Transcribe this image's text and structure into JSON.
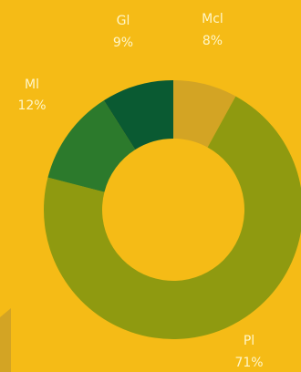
{
  "chart_data": {
    "type": "pie",
    "style": "donut",
    "title": "",
    "background_color": "#f5bb16",
    "segments": [
      {
        "label": "Mcl",
        "value": 8,
        "value_label": "8%",
        "color": "#d3a424"
      },
      {
        "label": "Pl",
        "value": 71,
        "value_label": "71%",
        "color": "#8f9a10"
      },
      {
        "label": "Ml",
        "value": 12,
        "value_label": "12%",
        "color": "#2c7a2c"
      },
      {
        "label": "Gl",
        "value": 9,
        "value_label": "9%",
        "color": "#0a5a32"
      }
    ],
    "legend": false,
    "grid": false
  },
  "decoration": {
    "corner_block_color": "#d3a424"
  }
}
